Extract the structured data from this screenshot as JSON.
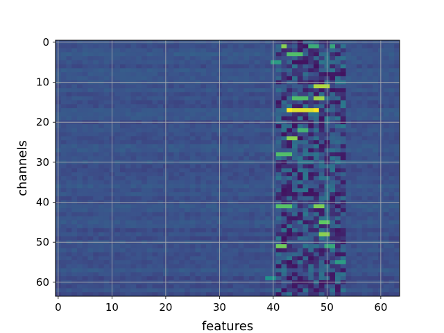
{
  "chart_data": {
    "type": "heatmap",
    "xlabel": "features",
    "ylabel": "channels",
    "x_ticks": [
      0,
      10,
      20,
      30,
      40,
      50,
      60
    ],
    "y_ticks": [
      0,
      10,
      20,
      30,
      40,
      50,
      60
    ],
    "xlim": [
      -0.5,
      63.5
    ],
    "ylim": [
      63.5,
      -0.5
    ],
    "n_rows": 64,
    "n_cols": 64,
    "grid": true,
    "colormap": "viridis",
    "colormap_stops": [
      "#440154",
      "#3b528b",
      "#21918c",
      "#5ec962",
      "#fde725"
    ],
    "y_inverted": true,
    "highlights": [
      {
        "row": 1,
        "cols": [
          42,
          42
        ],
        "value": 0.82
      },
      {
        "row": 1,
        "cols": [
          47,
          48
        ],
        "value": 0.62
      },
      {
        "row": 1,
        "cols": [
          51,
          51
        ],
        "value": 0.6
      },
      {
        "row": 3,
        "cols": [
          43,
          45
        ],
        "value": 0.7
      },
      {
        "row": 5,
        "cols": [
          40,
          41
        ],
        "value": 0.55
      },
      {
        "row": 11,
        "cols": [
          48,
          50
        ],
        "value": 0.88
      },
      {
        "row": 14,
        "cols": [
          44,
          46
        ],
        "value": 0.7
      },
      {
        "row": 14,
        "cols": [
          48,
          49
        ],
        "value": 0.85
      },
      {
        "row": 17,
        "cols": [
          43,
          48
        ],
        "value": 1.0
      },
      {
        "row": 17,
        "cols": [
          44,
          47
        ],
        "value": 0.95
      },
      {
        "row": 22,
        "cols": [
          45,
          46
        ],
        "value": 0.65
      },
      {
        "row": 24,
        "cols": [
          43,
          44
        ],
        "value": 0.82
      },
      {
        "row": 28,
        "cols": [
          41,
          43
        ],
        "value": 0.7
      },
      {
        "row": 41,
        "cols": [
          41,
          43
        ],
        "value": 0.72
      },
      {
        "row": 41,
        "cols": [
          48,
          49
        ],
        "value": 0.8
      },
      {
        "row": 45,
        "cols": [
          49,
          50
        ],
        "value": 0.75
      },
      {
        "row": 48,
        "cols": [
          49,
          50
        ],
        "value": 0.82
      },
      {
        "row": 51,
        "cols": [
          41,
          42
        ],
        "value": 0.78
      },
      {
        "row": 51,
        "cols": [
          50,
          51
        ],
        "value": 0.6
      },
      {
        "row": 55,
        "cols": [
          52,
          53
        ],
        "value": 0.55
      },
      {
        "row": 59,
        "cols": [
          39,
          40
        ],
        "value": 0.5
      }
    ],
    "dark_band_cols": [
      41,
      53
    ],
    "background_value": 0.25
  }
}
